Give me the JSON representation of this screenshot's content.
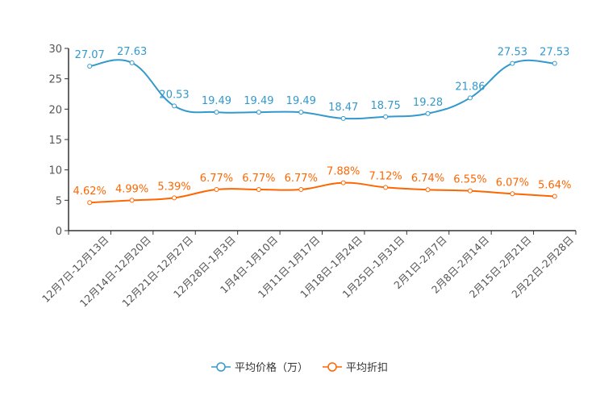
{
  "chart_data": {
    "type": "line",
    "categories": [
      "12月7日-12月13日",
      "12月14日-12月20日",
      "12月21日-12月27日",
      "12月28日-1月3日",
      "1月4日-1月10日",
      "1月11日-1月17日",
      "1月18日-1月24日",
      "1月25日-1月31日",
      "2月1日-2月7日",
      "2月8日-2月14日",
      "2月15日-2月21日",
      "2月22日-2月28日"
    ],
    "series": [
      {
        "name": "平均价格（万）",
        "color": "#3399cc",
        "values": [
          27.07,
          27.63,
          20.53,
          19.49,
          19.49,
          19.49,
          18.47,
          18.75,
          19.28,
          21.86,
          27.53,
          27.53
        ],
        "labels": [
          "27.07",
          "27.63",
          "20.53",
          "19.49",
          "19.49",
          "19.49",
          "18.47",
          "18.75",
          "19.28",
          "21.86",
          "27.53",
          "27.53"
        ]
      },
      {
        "name": "平均折扣",
        "color": "#ff6600",
        "values": [
          4.62,
          4.99,
          5.39,
          6.77,
          6.77,
          6.77,
          7.88,
          7.12,
          6.74,
          6.55,
          6.07,
          5.64
        ],
        "labels": [
          "4.62%",
          "4.99%",
          "5.39%",
          "6.77%",
          "6.77%",
          "6.77%",
          "7.88%",
          "7.12%",
          "6.74%",
          "6.55%",
          "6.07%",
          "5.64%"
        ]
      }
    ],
    "yticks": [
      "0",
      "5",
      "10",
      "15",
      "20",
      "25",
      "30"
    ],
    "ylim": [
      0,
      30
    ],
    "xlabel": "",
    "ylabel": "",
    "title": "",
    "legend_position": "bottom-center",
    "grid": false
  }
}
